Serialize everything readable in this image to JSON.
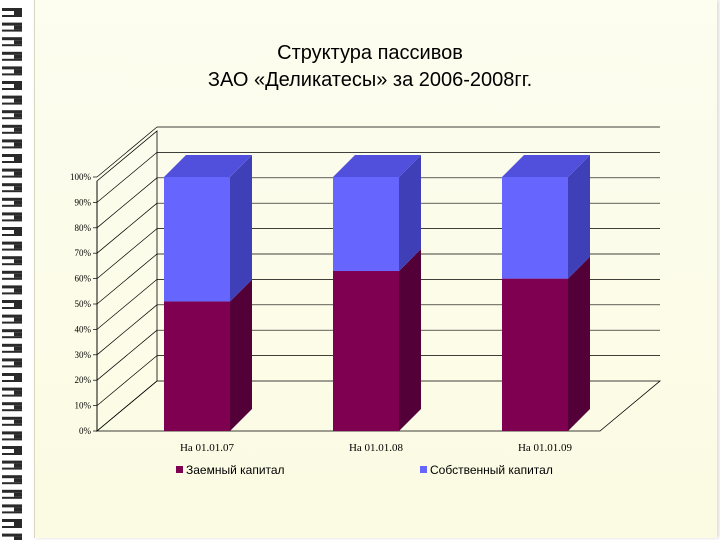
{
  "chart_data": {
    "type": "bar",
    "stacked": true,
    "percent": true,
    "title_lines": [
      "Структура пассивов",
      "ЗАО «Деликатесы» за 2006-2008гг."
    ],
    "categories": [
      "На 01.01.07",
      "На 01.01.08",
      "На 01.01.09"
    ],
    "y_ticks": [
      "0%",
      "10%",
      "20%",
      "30%",
      "40%",
      "50%",
      "60%",
      "70%",
      "80%",
      "90%",
      "100%"
    ],
    "ylim": [
      0,
      100
    ],
    "grid": true,
    "legend_position": "bottom",
    "series": [
      {
        "name": "Заемный капитал",
        "values": [
          51,
          63,
          60
        ],
        "color": "#7f0050",
        "side_color": "#540038",
        "top_color": "#7a0d55"
      },
      {
        "name": "Собственный капитал",
        "values": [
          49,
          37,
          40
        ],
        "color": "#6666ff",
        "side_color": "#3f3fb8",
        "top_color": "#5050dd"
      }
    ]
  }
}
